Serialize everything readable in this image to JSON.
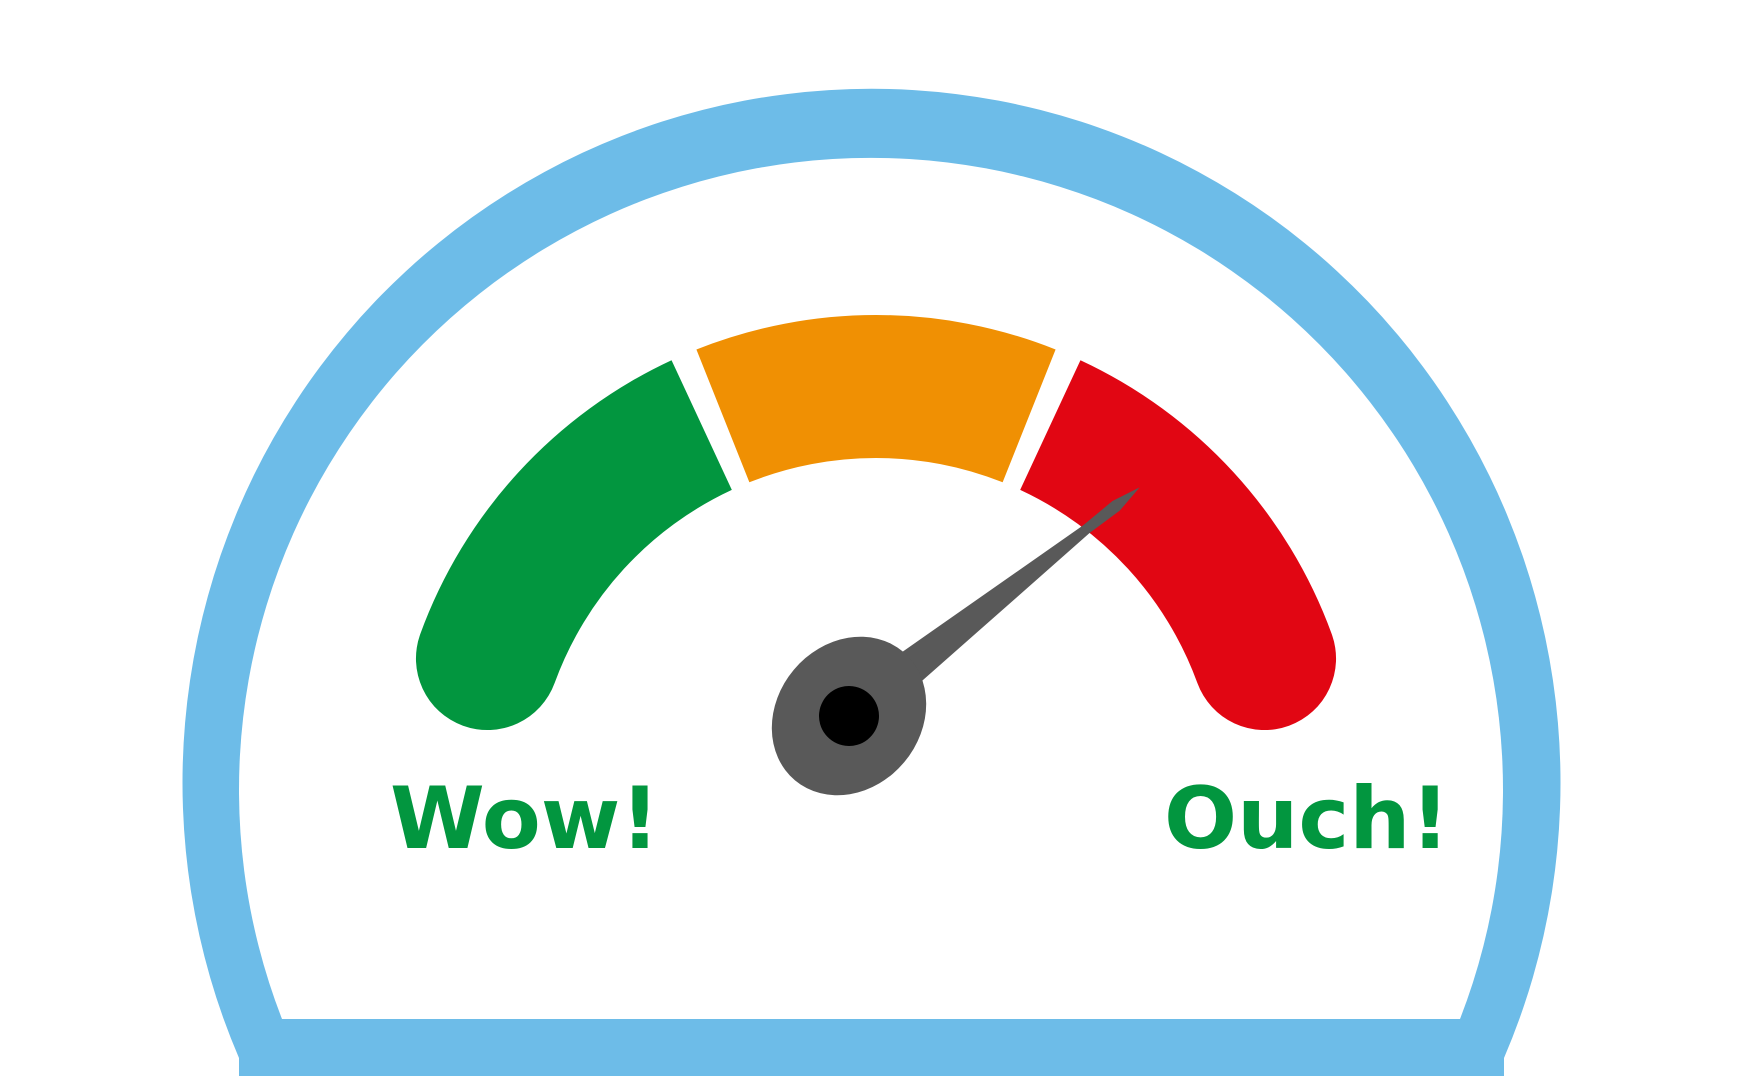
{
  "gauge": {
    "labels": {
      "low": "Wow!",
      "high": "Ouch!"
    },
    "level": 0.87,
    "zones": [
      {
        "name": "low-zone",
        "color": "#02963F"
      },
      {
        "name": "mid-zone",
        "color": "#F09003"
      },
      {
        "name": "high-zone",
        "color": "#E10613"
      }
    ],
    "colors": {
      "frame": "#6DBCE8",
      "label": "#02963F",
      "needle": "#595959",
      "hub_center": "#000000",
      "background": "#FFFFFF"
    }
  }
}
